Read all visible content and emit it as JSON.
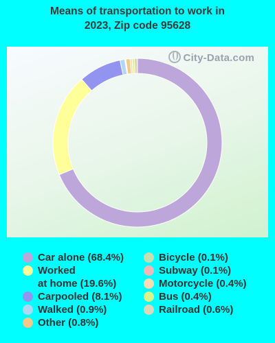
{
  "title_line1": "Means of transportation to work in",
  "title_line2": "2023, Zip code 95628",
  "watermark": "City-Data.com",
  "chart_data": {
    "type": "donut",
    "title": "Means of transportation to work in 2023, Zip code 95628",
    "series": [
      {
        "name": "Car alone",
        "label": "Car alone (68.4%)",
        "value": 68.4,
        "color": "#bca6da"
      },
      {
        "name": "Worked at home",
        "label": "Worked at home (19.6%)",
        "value": 19.6,
        "color": "#ffff99"
      },
      {
        "name": "Carpooled",
        "label": "Carpooled (8.1%)",
        "value": 8.1,
        "color": "#9393f0"
      },
      {
        "name": "Walked",
        "label": "Walked (0.9%)",
        "value": 0.9,
        "color": "#b0d8f5"
      },
      {
        "name": "Other",
        "label": "Other (0.8%)",
        "value": 0.8,
        "color": "#f6c98a"
      },
      {
        "name": "Bicycle",
        "label": "Bicycle (0.1%)",
        "value": 0.1,
        "color": "#c4e0b0"
      },
      {
        "name": "Subway",
        "label": "Subway (0.1%)",
        "value": 0.1,
        "color": "#f0b8b8"
      },
      {
        "name": "Motorcycle",
        "label": "Motorcycle (0.4%)",
        "value": 0.4,
        "color": "#f9dcb4"
      },
      {
        "name": "Bus",
        "label": "Bus (0.4%)",
        "value": 0.4,
        "color": "#d9f58a"
      },
      {
        "name": "Railroad",
        "label": "Railroad (0.6%)",
        "value": 0.6,
        "color": "#ddd8b8"
      }
    ],
    "slice_order": [
      "Car alone",
      "Worked at home",
      "Carpooled",
      "Walked",
      "Bicycle",
      "Subway",
      "Other",
      "Motorcycle",
      "Bus",
      "Railroad"
    ],
    "legend_position": "bottom"
  },
  "legend_layout": {
    "left_column": [
      "Car alone",
      "Worked at home",
      "Carpooled",
      "Walked",
      "Other"
    ],
    "right_column": [
      "Bicycle",
      "Subway",
      "Motorcycle",
      "Bus",
      "Railroad"
    ],
    "wrapped_labels": {
      "Worked at home": [
        "Worked",
        "at home (19.6%)"
      ]
    }
  }
}
